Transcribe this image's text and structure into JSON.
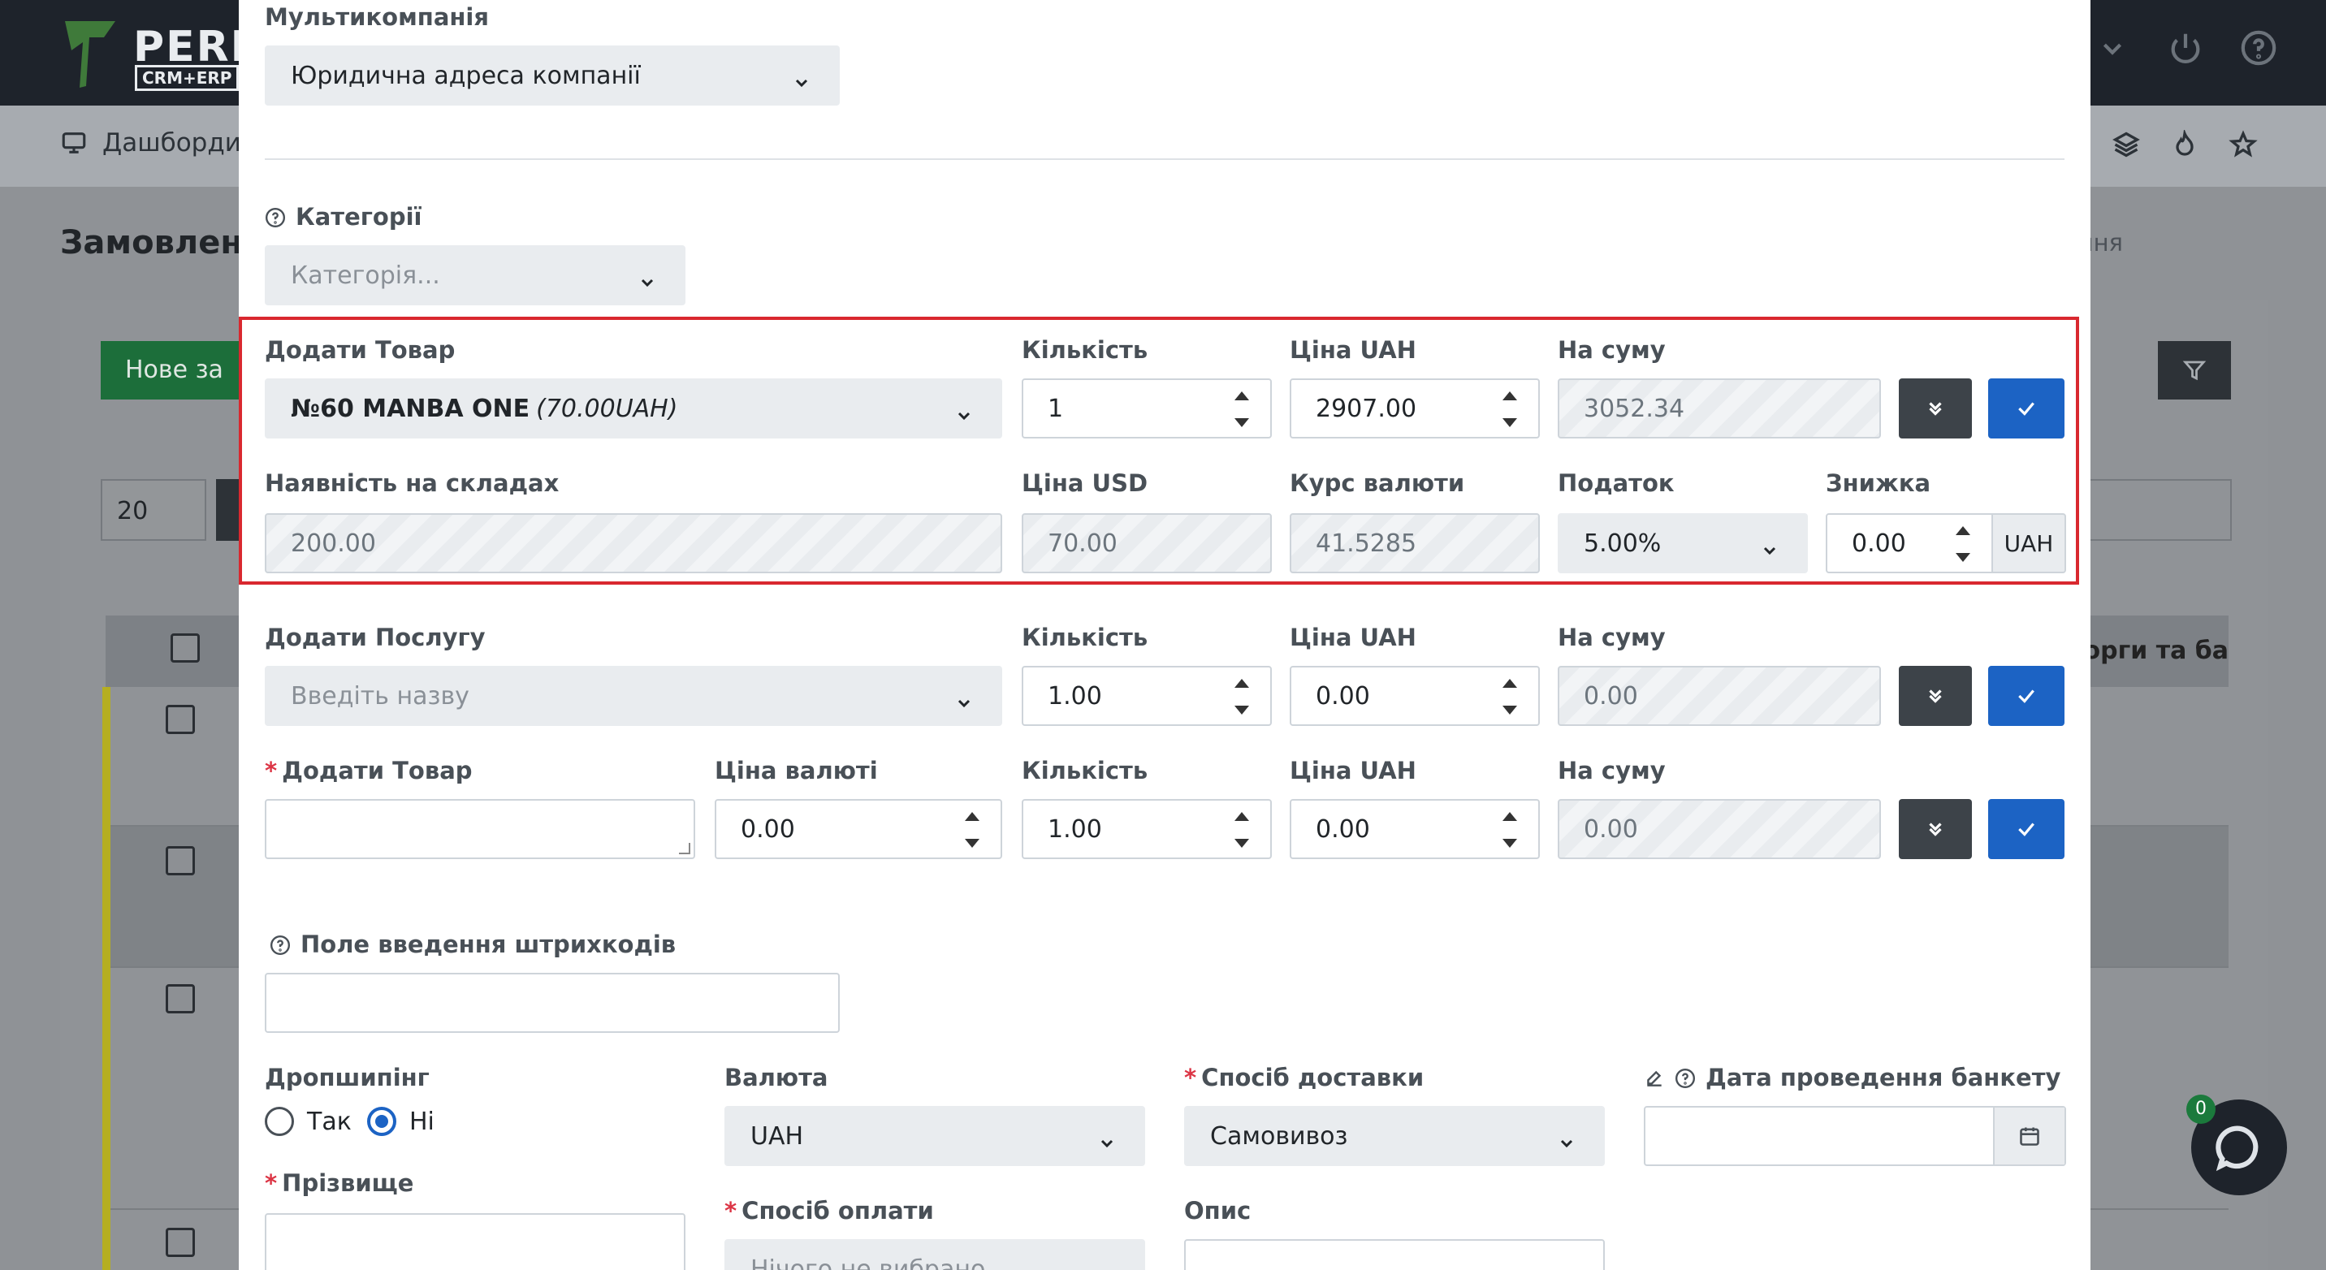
{
  "background": {
    "logo": {
      "word": "PERF",
      "sub": "CRM+ERP"
    },
    "subnav": {
      "dashboards": "Дашборди"
    },
    "page_title": "Замовлення",
    "breadcrumb": "Замовлення",
    "new_button": "Нове за",
    "per_page": "20",
    "table_header_partial": "к (борги та ба"
  },
  "modal": {
    "multicompany": {
      "label": "Мультикомпанія",
      "value": "Юридична адреса компанії"
    },
    "categories": {
      "label": "Категорії",
      "placeholder": "Категорія..."
    },
    "add_product": {
      "label": "Додати Товар",
      "product_name": "№60 MANBA ONE",
      "product_price_note": "(70.00UAH)",
      "qty_label": "Кількість",
      "qty": "1",
      "price_uah_label": "Ціна UAH",
      "price_uah": "2907.00",
      "sum_label": "На суму",
      "sum": "3052.34",
      "stock_label": "Наявність на складах",
      "stock": "200.00",
      "price_usd_label": "Ціна USD",
      "price_usd": "70.00",
      "rate_label": "Курс валюти",
      "rate": "41.5285",
      "tax_label": "Податок",
      "tax": "5.00%",
      "discount_label": "Знижка",
      "discount": "0.00",
      "discount_currency": "UAH"
    },
    "add_service": {
      "label": "Додати Послугу",
      "placeholder": "Введіть назву",
      "qty_label": "Кількість",
      "qty": "1.00",
      "price_uah_label": "Ціна UAH",
      "price_uah": "0.00",
      "sum_label": "На суму",
      "sum": "0.00"
    },
    "add_custom": {
      "label": "Додати Товар",
      "currency_price_label": "Ціна валюті",
      "currency_price": "0.00",
      "qty_label": "Кількість",
      "qty": "1.00",
      "price_uah_label": "Ціна UAH",
      "price_uah": "0.00",
      "sum_label": "На суму",
      "sum": "0.00"
    },
    "barcode": {
      "label": "Поле введення штрихкодів"
    },
    "dropshipping": {
      "label": "Дропшипінг",
      "yes": "Так",
      "no": "Ні"
    },
    "currency": {
      "label": "Валюта",
      "value": "UAH"
    },
    "delivery": {
      "label": "Спосіб доставки",
      "value": "Самовивоз"
    },
    "banquet_date": {
      "label": "Дата проведення банкету"
    },
    "surname": {
      "label": "Прізвище"
    },
    "payment": {
      "label": "Спосіб оплати",
      "value": "Нічого не вибрано"
    },
    "description": {
      "label": "Опис"
    }
  },
  "chat": {
    "badge": "0"
  },
  "colors": {
    "primary": "#1c63c4",
    "dark": "#3d4349",
    "highlight": "#d9282f",
    "header": "#1e232b"
  }
}
